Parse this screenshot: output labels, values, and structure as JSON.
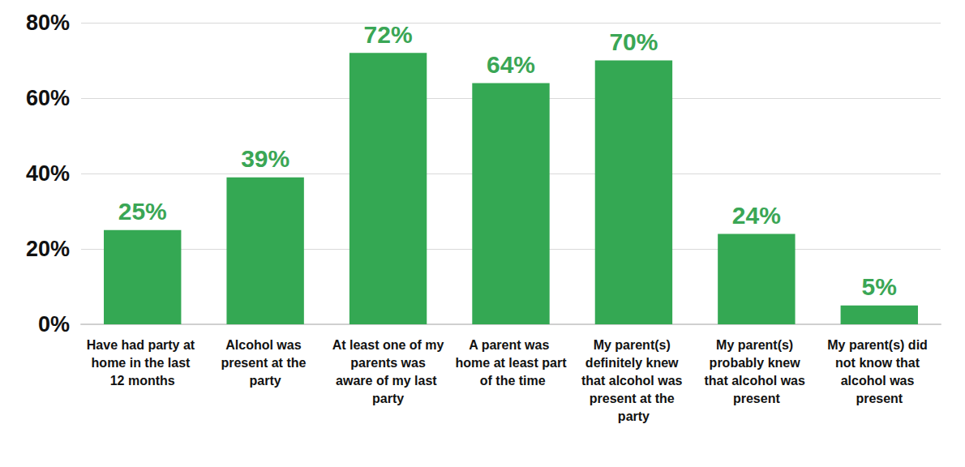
{
  "chart_data": {
    "type": "bar",
    "categories": [
      "Have had party at home in the last 12 months",
      "Alcohol was present at the party",
      "At least one of my parents was aware of my last party",
      "A parent was home at least part of the time",
      "My parent(s) definitely knew that alcohol was present at the party",
      "My parent(s) probably knew that alcohol was present",
      "My parent(s) did not know that alcohol was present"
    ],
    "values": [
      25,
      39,
      72,
      64,
      70,
      24,
      5
    ],
    "value_labels": [
      "25%",
      "39%",
      "72%",
      "64%",
      "70%",
      "24%",
      "5%"
    ],
    "color": "#34a853",
    "ylim": [
      0,
      80
    ],
    "yticks": [
      {
        "value": 0,
        "label": "0%"
      },
      {
        "value": 20,
        "label": "20%"
      },
      {
        "value": 40,
        "label": "40%"
      },
      {
        "value": 60,
        "label": "60%"
      },
      {
        "value": 80,
        "label": "80%"
      }
    ],
    "grid": true,
    "data_labels": true
  }
}
